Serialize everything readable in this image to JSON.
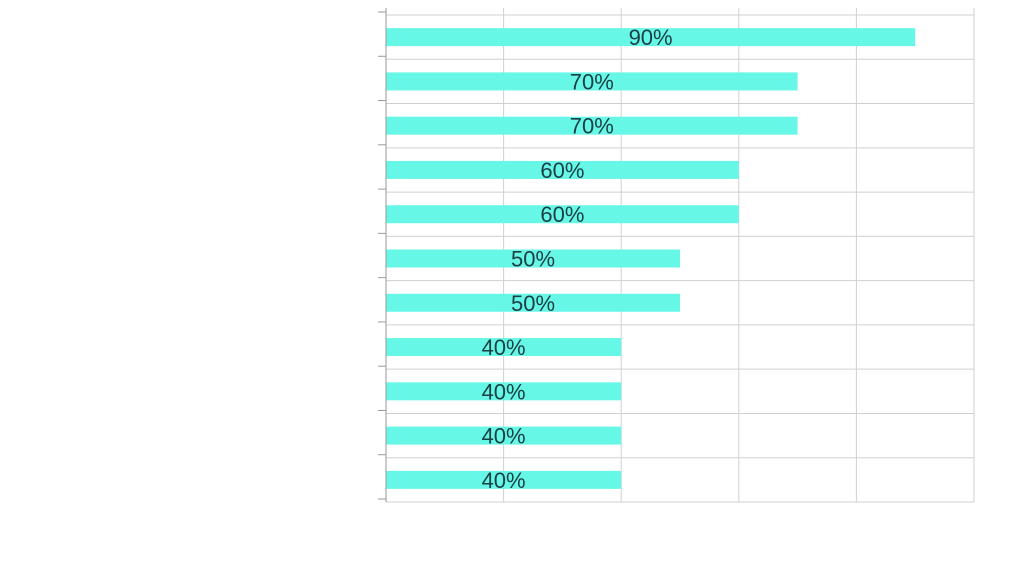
{
  "chart_data": {
    "type": "bar",
    "orientation": "horizontal",
    "categories": [
      "",
      "",
      "",
      "",
      "",
      "",
      "",
      "",
      "",
      "",
      ""
    ],
    "values": [
      90,
      70,
      70,
      60,
      60,
      50,
      50,
      40,
      40,
      40,
      40
    ],
    "data_labels": [
      "90%",
      "70%",
      "70%",
      "60%",
      "60%",
      "50%",
      "50%",
      "40%",
      "40%",
      "40%",
      "40%"
    ],
    "unit": "%",
    "xlim": [
      0,
      100
    ],
    "grid": true,
    "title": "",
    "xlabel": "",
    "ylabel": "",
    "bar_color": "#66f7e6",
    "grid_color": "#d0d0d0",
    "label_color": "#1a3f44"
  }
}
